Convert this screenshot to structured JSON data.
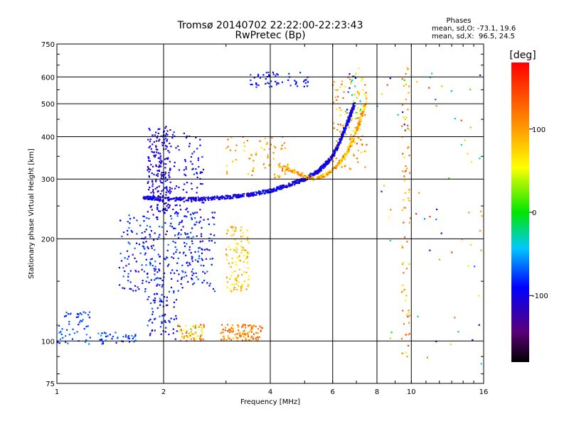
{
  "chart_data": {
    "type": "scatter",
    "title": "Tromsø 20140702 22:22:00-22:23:43",
    "subtitle": "RwPretec (Bp)",
    "xlabel": "Frequency [MHz]",
    "ylabel": "Stationary phase Virtual Height [km]",
    "x_scale": "log",
    "y_scale": "log",
    "xlim": [
      1,
      16
    ],
    "ylim": [
      75,
      750
    ],
    "x_ticks": [
      1,
      2,
      4,
      6,
      8,
      10,
      16
    ],
    "y_ticks": [
      75,
      100,
      200,
      300,
      400,
      500,
      600,
      750
    ],
    "grid": true,
    "phase_info": {
      "title": "Phases",
      "line_o": "mean, sd,O: -73.1, 19.6",
      "line_x": "mean, sd,X:  96.5, 24.5"
    },
    "colorbar": {
      "label": "[deg]",
      "range": [
        -180,
        180
      ],
      "ticks": [
        100,
        0,
        -100
      ]
    },
    "clusters": [
      {
        "freq": [
          1.0,
          1.25
        ],
        "height": [
          98,
          122
        ],
        "phase": [
          -90,
          -55
        ],
        "n": 55
      },
      {
        "freq": [
          1.3,
          1.7
        ],
        "height": [
          98,
          106
        ],
        "phase": [
          -95,
          -50
        ],
        "n": 40
      },
      {
        "freq": [
          1.5,
          2.8
        ],
        "height": [
          140,
          240
        ],
        "phase": [
          -115,
          -60
        ],
        "n": 320
      },
      {
        "freq": [
          1.8,
          2.1
        ],
        "height": [
          240,
          430
        ],
        "phase": [
          -125,
          -85
        ],
        "n": 190
      },
      {
        "freq": [
          2.0,
          2.6
        ],
        "height": [
          220,
          420
        ],
        "phase": [
          -120,
          -75
        ],
        "n": 110
      },
      {
        "freq": [
          1.8,
          2.2
        ],
        "height": [
          100,
          140
        ],
        "phase": [
          -120,
          -60
        ],
        "n": 70
      },
      {
        "freq": [
          2.2,
          2.6
        ],
        "height": [
          100,
          112
        ],
        "phase": [
          20,
          150
        ],
        "n": 60
      },
      {
        "freq": [
          2.9,
          3.8
        ],
        "height": [
          100,
          112
        ],
        "phase": [
          80,
          150
        ],
        "n": 110
      },
      {
        "freq": [
          3.0,
          3.5
        ],
        "height": [
          140,
          220
        ],
        "phase": [
          50,
          110
        ],
        "n": 110
      },
      {
        "freq": [
          3.0,
          4.5
        ],
        "height": [
          300,
          400
        ],
        "phase": [
          60,
          140
        ],
        "n": 70
      },
      {
        "freq": [
          3.5,
          5.2
        ],
        "height": [
          560,
          620
        ],
        "phase": [
          -110,
          -70
        ],
        "n": 55
      },
      {
        "freq": [
          6.0,
          7.5
        ],
        "height": [
          320,
          600
        ],
        "phase": [
          60,
          140
        ],
        "n": 110
      },
      {
        "freq": [
          6.5,
          7.3
        ],
        "height": [
          450,
          640
        ],
        "phase": [
          -120,
          100
        ],
        "n": 30
      },
      {
        "freq": [
          9.4,
          9.9
        ],
        "height": [
          90,
          640
        ],
        "phase": [
          60,
          150
        ],
        "n": 70
      },
      {
        "freq": [
          8.0,
          16.0
        ],
        "height": [
          85,
          620
        ],
        "phase": [
          -130,
          160
        ],
        "n": 70
      }
    ],
    "traces": [
      {
        "name": "F-trace",
        "phase": [
          -120,
          -80
        ],
        "width_log": 0.012,
        "n": 900,
        "points": [
          [
            1.75,
            265
          ],
          [
            2.0,
            262
          ],
          [
            2.5,
            262
          ],
          [
            3.0,
            265
          ],
          [
            3.5,
            270
          ],
          [
            4.0,
            277
          ],
          [
            4.5,
            288
          ],
          [
            5.0,
            300
          ],
          [
            5.5,
            318
          ],
          [
            6.0,
            350
          ],
          [
            6.3,
            390
          ],
          [
            6.6,
            440
          ],
          [
            6.9,
            500
          ]
        ]
      },
      {
        "name": "F-trace-x",
        "phase": [
          50,
          140
        ],
        "width_log": 0.012,
        "n": 320,
        "points": [
          [
            4.2,
            330
          ],
          [
            4.8,
            312
          ],
          [
            5.3,
            300
          ],
          [
            5.8,
            310
          ],
          [
            6.2,
            330
          ],
          [
            6.6,
            360
          ],
          [
            6.9,
            400
          ],
          [
            7.2,
            450
          ],
          [
            7.4,
            500
          ]
        ]
      }
    ]
  }
}
